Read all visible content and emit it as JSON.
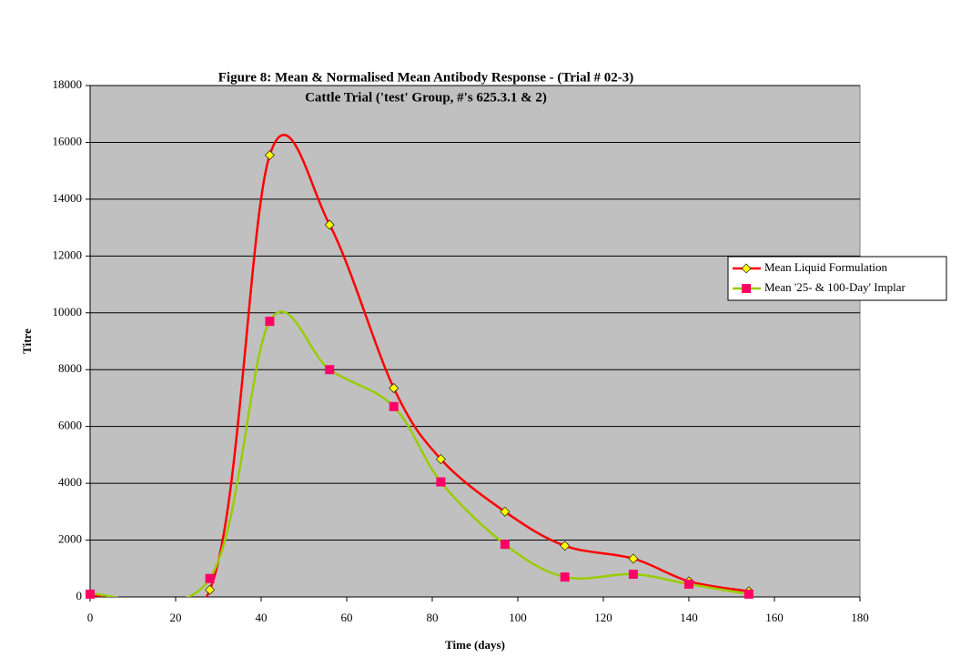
{
  "chart_data": {
    "type": "line",
    "smooth": true,
    "title": "Figure 8: Mean & Normalised Mean Antibody Response - (Trial # 02-3)",
    "subtitle": "Cattle Trial ('test' Group, #'s 625.3.1 & 2)",
    "x_label": "Time (days)",
    "y_label": "Titre",
    "xlim": [
      0,
      180
    ],
    "xticks": [
      0,
      20,
      40,
      60,
      80,
      100,
      120,
      140,
      160,
      180
    ],
    "ylim": [
      0,
      18000
    ],
    "yticks": [
      0,
      2000,
      4000,
      6000,
      8000,
      10000,
      12000,
      14000,
      16000,
      18000
    ],
    "grid": true,
    "legend": "right",
    "series": [
      {
        "name": "Mean Liquid Formulation",
        "color": "#ff0000",
        "marker": "diamond",
        "marker_color": "#ffff00",
        "x": [
          0,
          28,
          42,
          56,
          71,
          82,
          97,
          111,
          127,
          140,
          154
        ],
        "values": [
          100,
          250,
          15550,
          13100,
          7350,
          4850,
          3000,
          1800,
          1350,
          550,
          200
        ]
      },
      {
        "name": "Mean '25- & 100-Day' Implar",
        "color": "#99cc00",
        "marker": "square",
        "marker_color": "#ff0066",
        "x": [
          0,
          28,
          42,
          56,
          71,
          82,
          97,
          111,
          127,
          140,
          154
        ],
        "values": [
          100,
          650,
          9700,
          8000,
          6700,
          4050,
          1850,
          700,
          800,
          450,
          100
        ]
      }
    ]
  }
}
